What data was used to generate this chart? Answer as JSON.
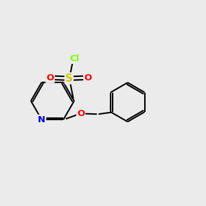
{
  "background_color": "#ebebeb",
  "bond_color": "#000000",
  "atom_colors": {
    "N": "#0000ff",
    "O": "#ff0000",
    "S": "#cccc00",
    "Cl": "#7cfc00"
  },
  "figsize": [
    3.0,
    3.0
  ],
  "dpi": 100
}
